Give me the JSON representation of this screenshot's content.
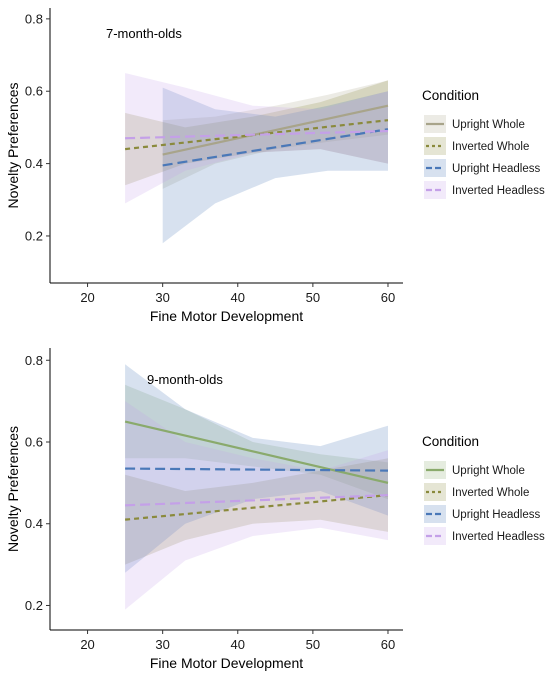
{
  "chart_data": [
    {
      "type": "line",
      "title": "7-month-olds",
      "xlabel": "Fine Motor Development",
      "ylabel": "Novelty Preferences",
      "xlim": [
        15,
        62
      ],
      "ylim": [
        0.07,
        0.83
      ],
      "xticks": [
        20,
        30,
        40,
        50,
        60
      ],
      "yticks": [
        0.2,
        0.4,
        0.6,
        0.8
      ],
      "grid": false,
      "legend": {
        "title": "Condition",
        "position": "right"
      },
      "series": [
        {
          "name": "Upright Whole",
          "color": "#a8a48a",
          "dash": "solid",
          "x": [
            30,
            60
          ],
          "y": [
            0.425,
            0.56
          ],
          "band_x": [
            30,
            37,
            45,
            52,
            60
          ],
          "band_lower": [
            0.33,
            0.4,
            0.44,
            0.46,
            0.48
          ],
          "band_upper": [
            0.52,
            0.53,
            0.56,
            0.59,
            0.63
          ]
        },
        {
          "name": "Inverted Whole",
          "color": "#8a8a3c",
          "dash": "dotted",
          "x": [
            25,
            60
          ],
          "y": [
            0.44,
            0.52
          ],
          "band_x": [
            25,
            33,
            42,
            51,
            60
          ],
          "band_lower": [
            0.34,
            0.4,
            0.43,
            0.44,
            0.4
          ],
          "band_upper": [
            0.54,
            0.5,
            0.53,
            0.57,
            0.63
          ]
        },
        {
          "name": "Upright Headless",
          "color": "#4a78b8",
          "dash": "dashed",
          "x": [
            30,
            60
          ],
          "y": [
            0.395,
            0.495
          ],
          "band_x": [
            30,
            37,
            45,
            52,
            60
          ],
          "band_lower": [
            0.18,
            0.29,
            0.36,
            0.38,
            0.38
          ],
          "band_upper": [
            0.61,
            0.55,
            0.53,
            0.56,
            0.6
          ]
        },
        {
          "name": "Inverted Headless",
          "color": "#c4a0e8",
          "dash": "dashed",
          "x": [
            25,
            60
          ],
          "y": [
            0.47,
            0.49
          ],
          "band_x": [
            25,
            33,
            42,
            51,
            60
          ],
          "band_lower": [
            0.29,
            0.38,
            0.43,
            0.44,
            0.4
          ],
          "band_upper": [
            0.65,
            0.61,
            0.56,
            0.55,
            0.6
          ]
        }
      ]
    },
    {
      "type": "line",
      "title": "9-month-olds",
      "xlabel": "Fine Motor Development",
      "ylabel": "Novelty Preferences",
      "xlim": [
        15,
        62
      ],
      "ylim": [
        0.14,
        0.83
      ],
      "xticks": [
        20,
        30,
        40,
        50,
        60
      ],
      "yticks": [
        0.2,
        0.4,
        0.6,
        0.8
      ],
      "grid": false,
      "legend": {
        "title": "Condition",
        "position": "right"
      },
      "series": [
        {
          "name": "Upright Whole",
          "color": "#8aaa6c",
          "dash": "solid",
          "x": [
            25,
            60
          ],
          "y": [
            0.65,
            0.5
          ],
          "band_x": [
            25,
            33,
            42,
            51,
            60
          ],
          "band_lower": [
            0.56,
            0.56,
            0.54,
            0.52,
            0.46
          ],
          "band_upper": [
            0.74,
            0.68,
            0.6,
            0.57,
            0.55
          ]
        },
        {
          "name": "Inverted Whole",
          "color": "#8a8a3c",
          "dash": "dotted",
          "x": [
            25,
            60
          ],
          "y": [
            0.41,
            0.47
          ],
          "band_x": [
            25,
            33,
            42,
            51,
            60
          ],
          "band_lower": [
            0.3,
            0.36,
            0.4,
            0.41,
            0.38
          ],
          "band_upper": [
            0.52,
            0.48,
            0.5,
            0.53,
            0.56
          ]
        },
        {
          "name": "Upright Headless",
          "color": "#4a78b8",
          "dash": "dashed",
          "x": [
            25,
            60
          ],
          "y": [
            0.535,
            0.53
          ],
          "band_x": [
            25,
            33,
            42,
            51,
            60
          ],
          "band_lower": [
            0.28,
            0.4,
            0.46,
            0.48,
            0.42
          ],
          "band_upper": [
            0.79,
            0.68,
            0.61,
            0.59,
            0.64
          ]
        },
        {
          "name": "Inverted Headless",
          "color": "#c4a0e8",
          "dash": "dashed",
          "x": [
            25,
            60
          ],
          "y": [
            0.445,
            0.47
          ],
          "band_x": [
            25,
            33,
            42,
            51,
            60
          ],
          "band_lower": [
            0.19,
            0.31,
            0.37,
            0.39,
            0.36
          ],
          "band_upper": [
            0.7,
            0.6,
            0.56,
            0.53,
            0.58
          ]
        }
      ]
    }
  ]
}
